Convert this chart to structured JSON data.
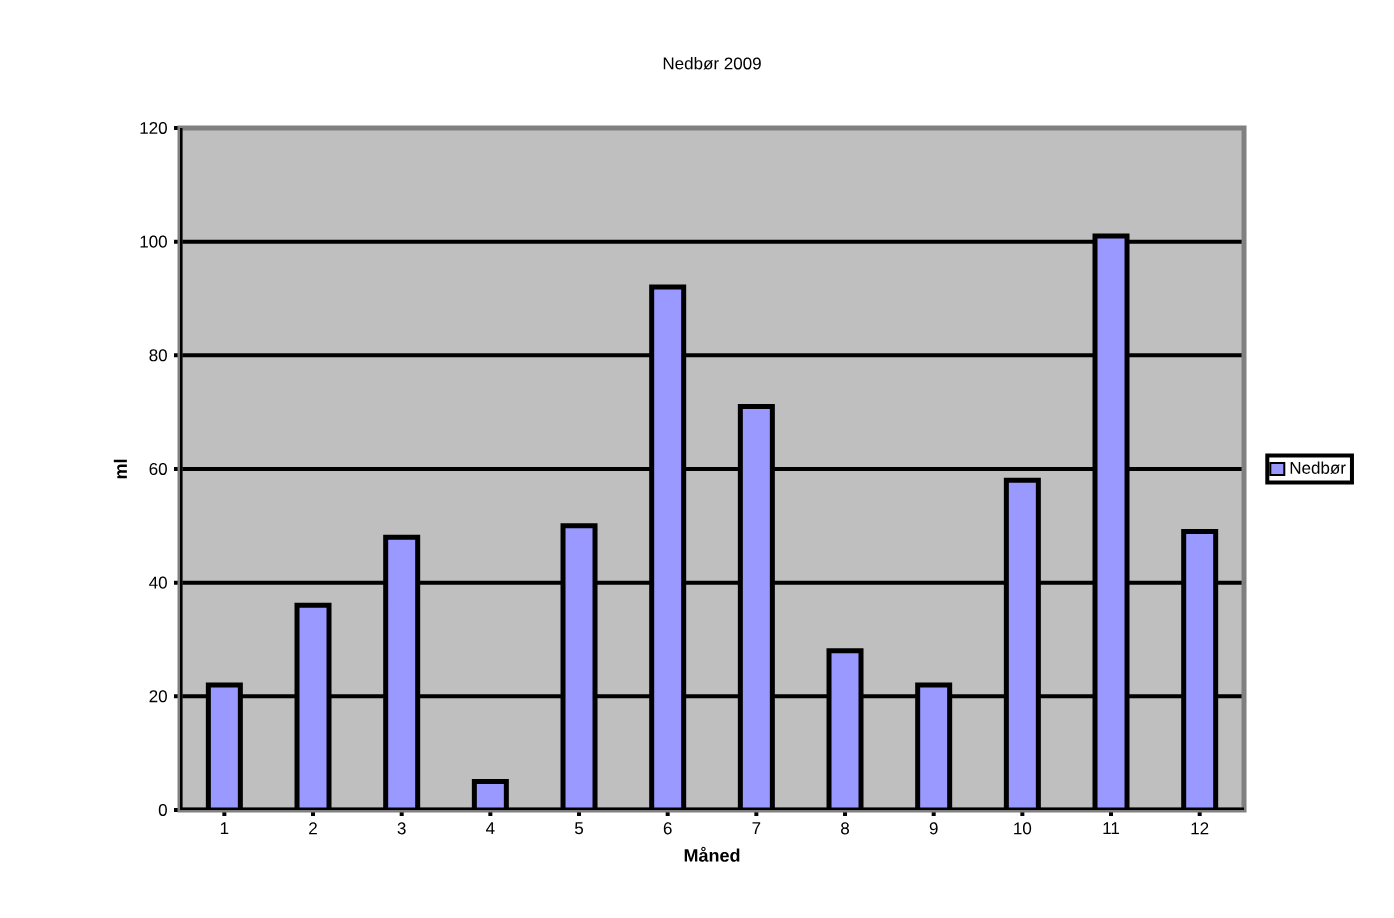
{
  "chart_data": {
    "type": "bar",
    "title": "Nedbør 2009",
    "xlabel": "Måned",
    "ylabel": "ml",
    "categories": [
      "1",
      "2",
      "3",
      "4",
      "5",
      "6",
      "7",
      "8",
      "9",
      "10",
      "11",
      "12"
    ],
    "series": [
      {
        "name": "Nedbør",
        "color": "#9999ff",
        "values": [
          22,
          36,
          48,
          5,
          50,
          92,
          71,
          28,
          22,
          58,
          101,
          49
        ]
      }
    ],
    "ylim": [
      0,
      120
    ],
    "yticks": [
      0,
      20,
      40,
      60,
      80,
      100,
      120
    ],
    "grid": "y",
    "legend": "right"
  }
}
